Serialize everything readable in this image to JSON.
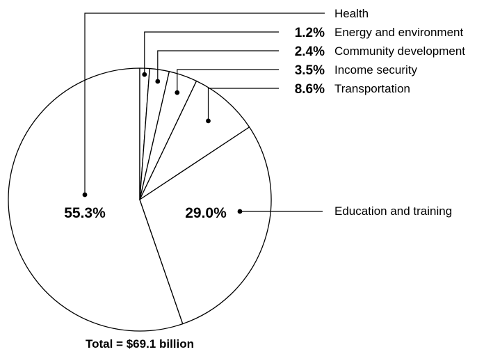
{
  "chart_data": {
    "type": "pie",
    "total_label": "Total = $69.1 billion",
    "slices": [
      {
        "name": "Health",
        "value": 55.3,
        "value_label": "55.3%",
        "label": "Health"
      },
      {
        "name": "Energy and environment",
        "value": 1.2,
        "value_label": "1.2%",
        "label": "Energy and environment"
      },
      {
        "name": "Community development",
        "value": 2.4,
        "value_label": "2.4%",
        "label": "Community development"
      },
      {
        "name": "Income security",
        "value": 3.5,
        "value_label": "3.5%",
        "label": "Income security"
      },
      {
        "name": "Transportation",
        "value": 8.6,
        "value_label": "8.6%",
        "label": "Transportation"
      },
      {
        "name": "Education and training",
        "value": 29.0,
        "value_label": "29.0%",
        "label": "Education and training"
      }
    ]
  }
}
